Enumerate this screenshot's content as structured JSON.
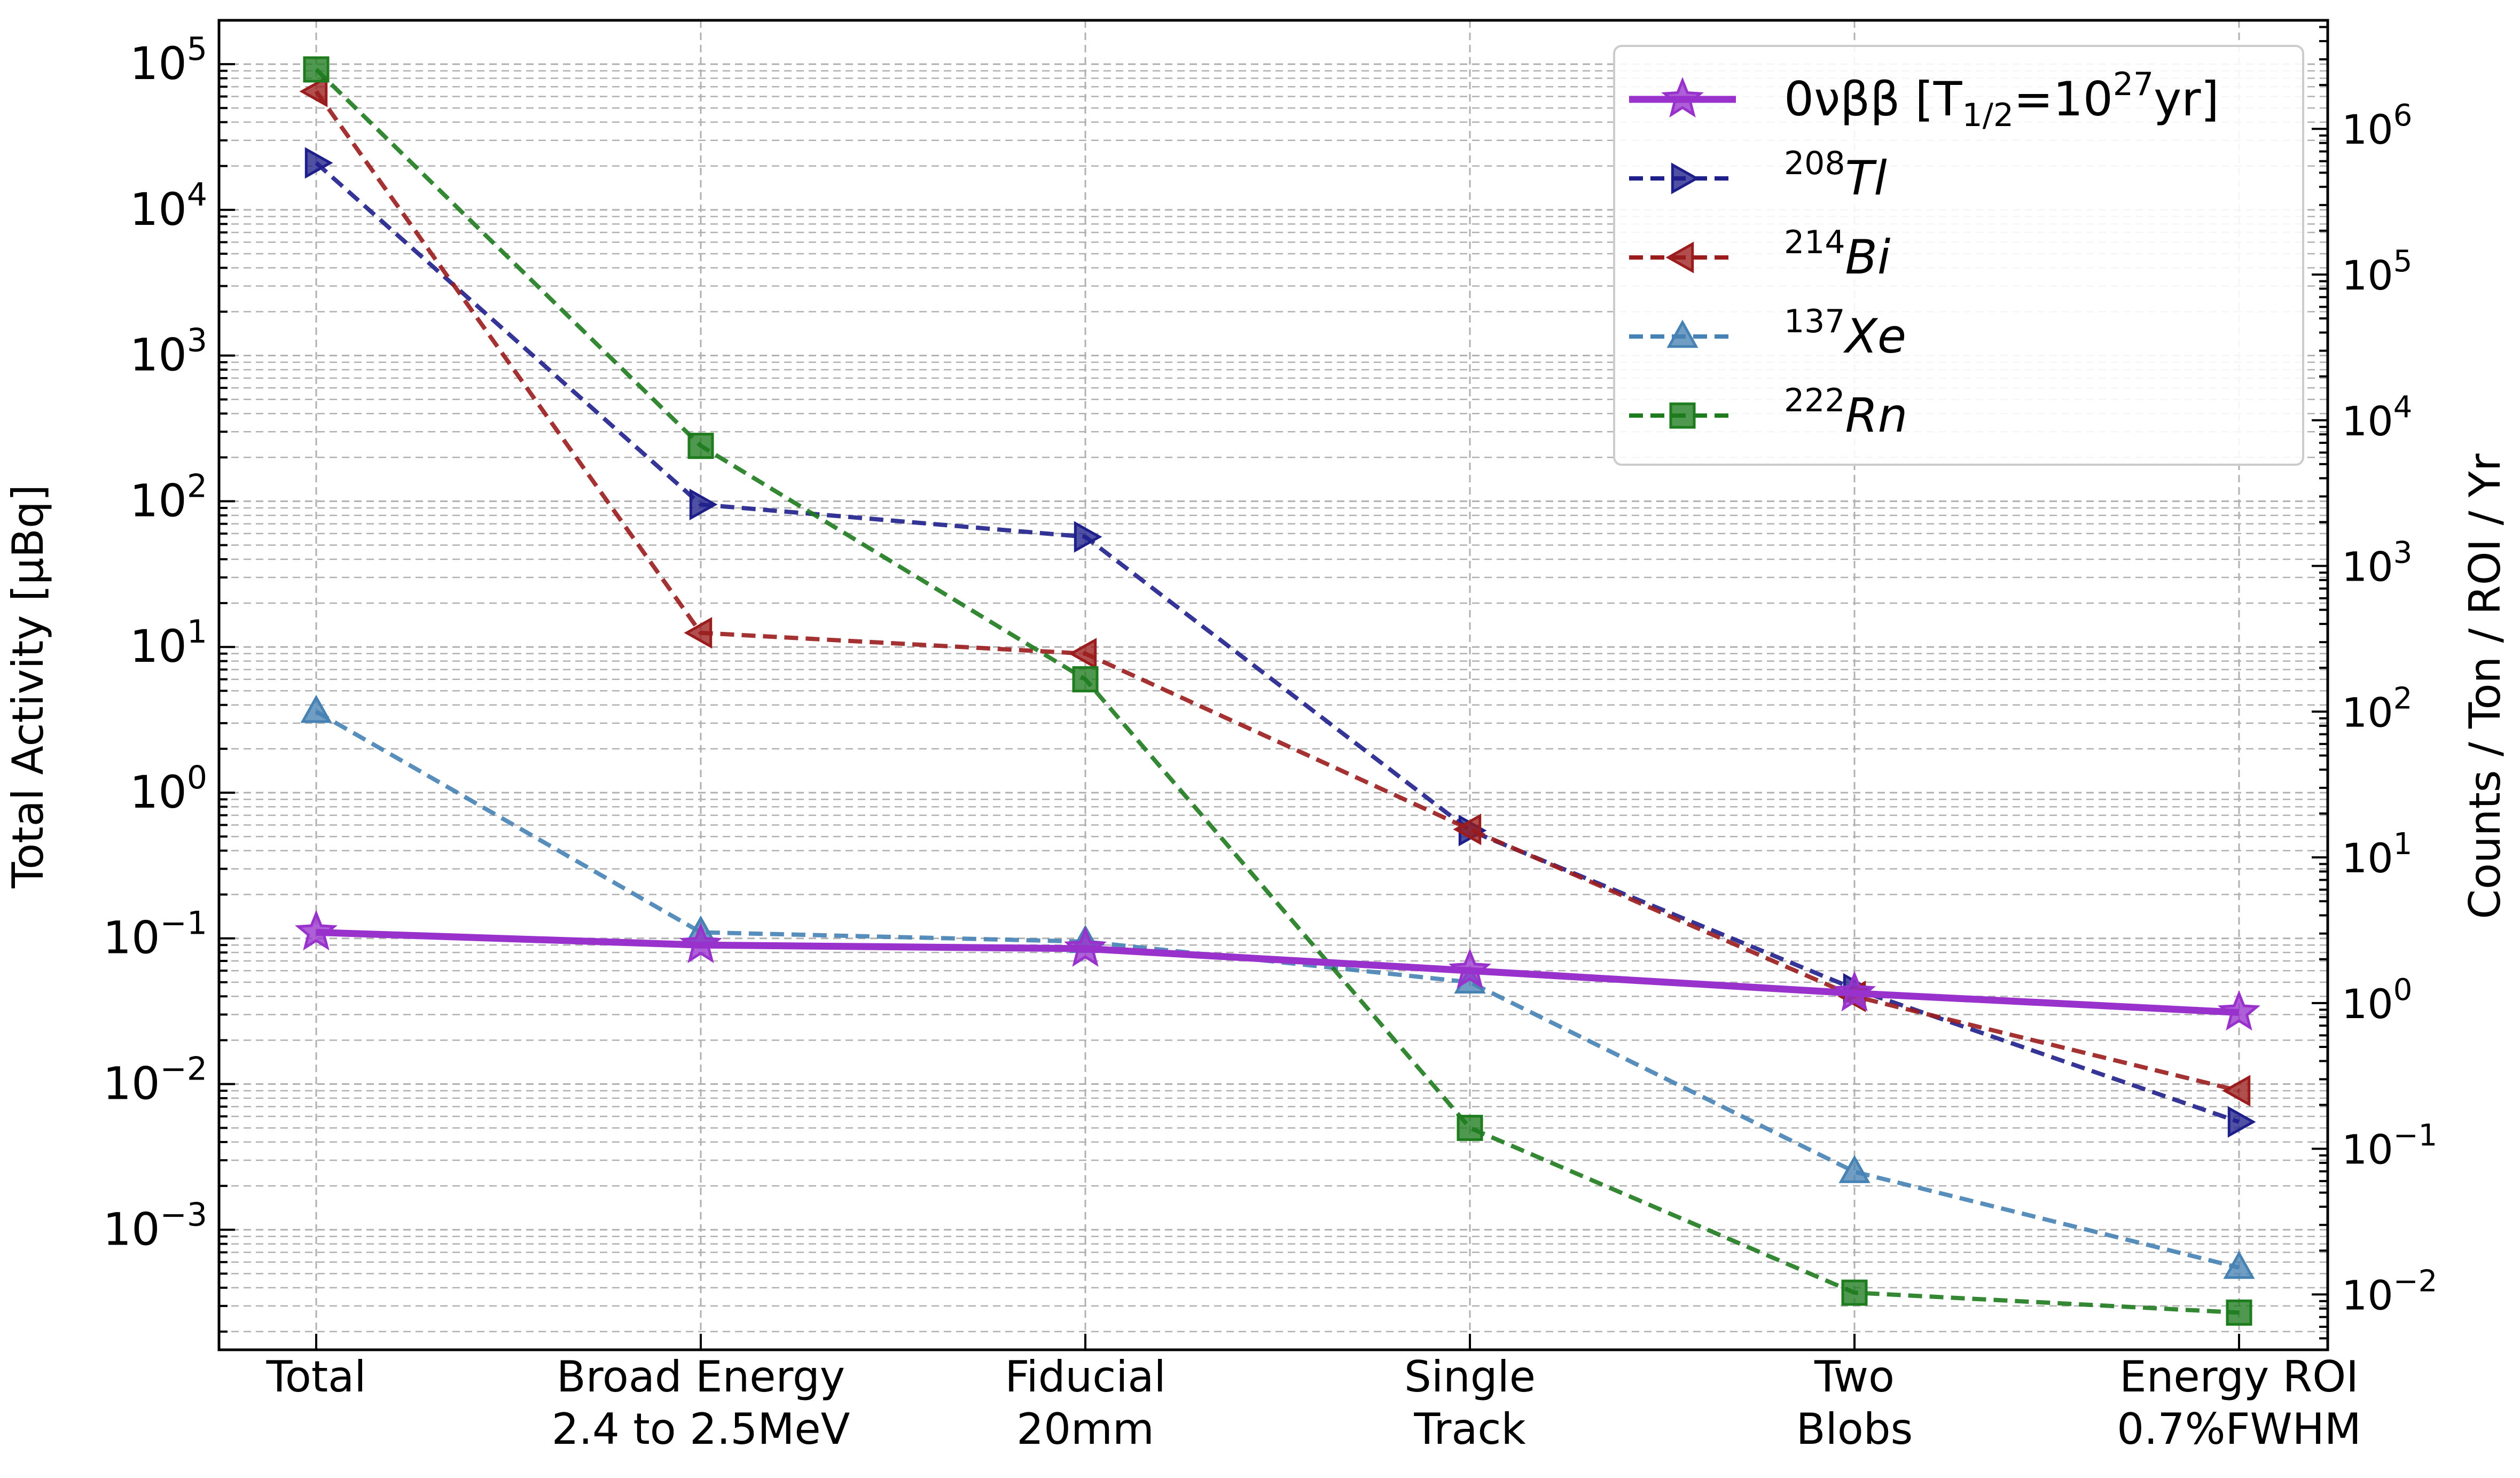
{
  "chart_data": {
    "type": "line",
    "categories": [
      [
        "Total",
        ""
      ],
      [
        "Broad Energy",
        "2.4 to 2.5MeV"
      ],
      [
        "Fiducial",
        "20mm"
      ],
      [
        "Single",
        "Track"
      ],
      [
        "Two",
        "Blobs"
      ],
      [
        "Energy ROI",
        "0.7%FWHM"
      ]
    ],
    "ylabel": "Total Activity [μBq]",
    "y2label": "Counts / Ton / ROI / Yr",
    "yscale": "log",
    "ylim": [
      0.00015,
      200000
    ],
    "y_ticks": [
      {
        "base": "10",
        "exp": "5"
      },
      {
        "base": "10",
        "exp": "4"
      },
      {
        "base": "10",
        "exp": "3"
      },
      {
        "base": "10",
        "exp": "2"
      },
      {
        "base": "10",
        "exp": "1"
      },
      {
        "base": "10",
        "exp": "0"
      },
      {
        "base": "10",
        "exp": "−1"
      },
      {
        "base": "10",
        "exp": "−2"
      },
      {
        "base": "10",
        "exp": "−3"
      }
    ],
    "y2_ticks": [
      {
        "base": "10",
        "exp": "6"
      },
      {
        "base": "10",
        "exp": "5"
      },
      {
        "base": "10",
        "exp": "4"
      },
      {
        "base": "10",
        "exp": "3"
      },
      {
        "base": "10",
        "exp": "2"
      },
      {
        "base": "10",
        "exp": "1"
      },
      {
        "base": "10",
        "exp": "0"
      },
      {
        "base": "10",
        "exp": "−1"
      },
      {
        "base": "10",
        "exp": "−2"
      }
    ],
    "y2_scale_factor": 27.8,
    "grid": true,
    "legend_position": "top-right",
    "series": [
      {
        "name": "0νββ [T1/2=10^27yr]",
        "legend": {
          "main": "0νββ [T",
          "sub": "1/2",
          "mid": "=10",
          "sup": "27",
          "end": "yr]"
        },
        "color": "#9932CC",
        "marker": "star",
        "linestyle": "solid",
        "values": [
          0.11,
          0.09,
          0.085,
          0.06,
          0.042,
          0.031
        ]
      },
      {
        "name": "208Tl",
        "legend": {
          "sup": "208",
          "main": "Tl"
        },
        "color": "#1F1F8C",
        "marker": "triangle-right",
        "linestyle": "dashed",
        "values": [
          21000,
          95,
          57,
          0.55,
          0.045,
          0.0055
        ]
      },
      {
        "name": "214Bi",
        "legend": {
          "sup": "214",
          "main": "Bi"
        },
        "color": "#9B1C1C",
        "marker": "triangle-left",
        "linestyle": "dashed",
        "values": [
          65000,
          12.5,
          9,
          0.56,
          0.04,
          0.009
        ]
      },
      {
        "name": "137Xe",
        "legend": {
          "sup": "137",
          "main": "Xe"
        },
        "color": "#4682B4",
        "marker": "triangle-up",
        "linestyle": "dashed",
        "values": [
          3.6,
          0.11,
          0.095,
          0.05,
          0.0025,
          0.00055
        ]
      },
      {
        "name": "222Rn",
        "legend": {
          "sup": "222",
          "main": "Rn"
        },
        "color": "#1E7B1E",
        "marker": "square",
        "linestyle": "dashed",
        "values": [
          92000,
          240,
          6,
          0.005,
          0.00037,
          0.00027
        ]
      }
    ]
  }
}
